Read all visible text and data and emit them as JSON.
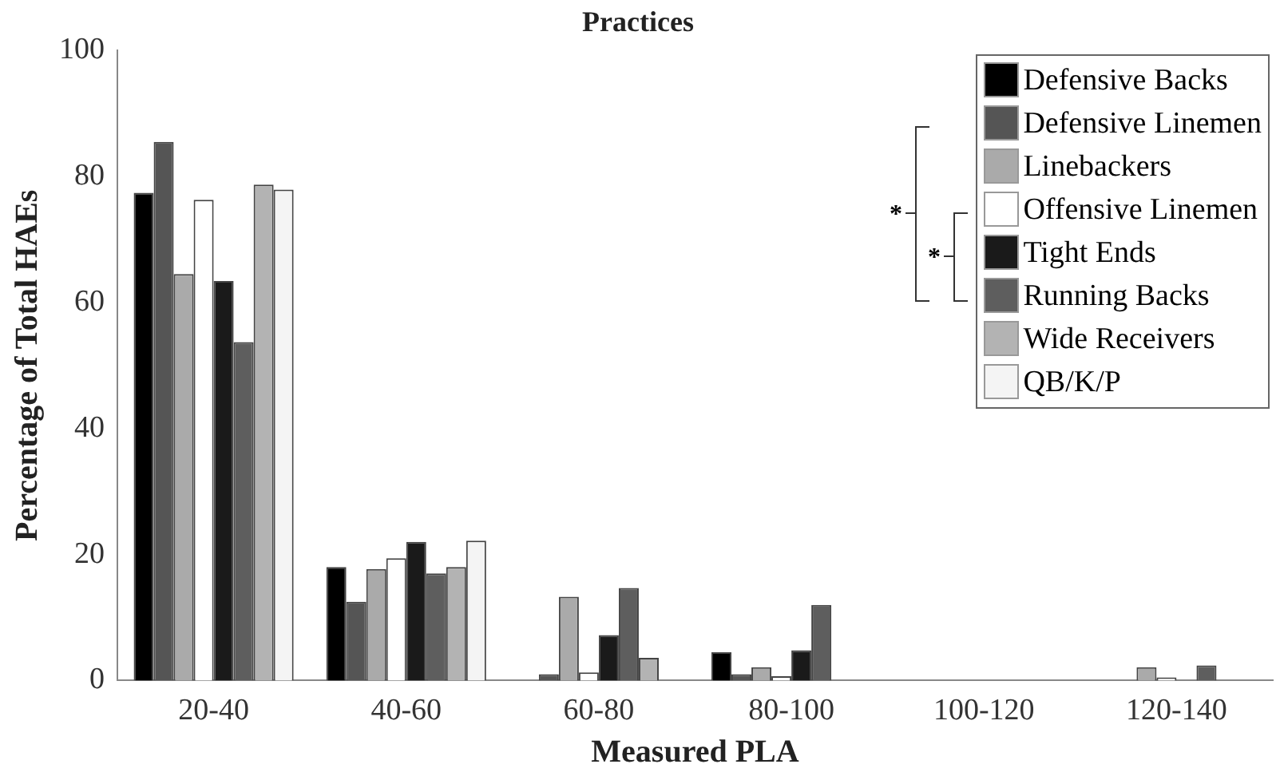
{
  "chart_data": {
    "type": "bar",
    "title": "Practices",
    "xlabel": "Measured PLA",
    "ylabel": "Percentage of Total HAEs",
    "categories": [
      "20-40",
      "40-60",
      "60-80",
      "80-100",
      "100-120",
      "120-140"
    ],
    "series": [
      {
        "name": "Defensive Backs",
        "color": "#000000",
        "values": [
          77.4,
          18.0,
          0,
          4.5,
          0,
          0
        ]
      },
      {
        "name": "Defensive Linemen",
        "color": "#555555",
        "values": [
          85.5,
          12.5,
          1.0,
          1.0,
          0,
          0
        ]
      },
      {
        "name": "Linebackers",
        "color": "#aaaaaa",
        "values": [
          64.5,
          17.7,
          13.3,
          2.1,
          0,
          2.1
        ]
      },
      {
        "name": "Offensive Linemen",
        "color": "#ffffff",
        "values": [
          76.3,
          19.4,
          1.3,
          0.7,
          0,
          0.5
        ]
      },
      {
        "name": "Tight Ends",
        "color": "#1a1a1a",
        "values": [
          63.4,
          22.0,
          7.2,
          4.8,
          0,
          0
        ]
      },
      {
        "name": "Running Backs",
        "color": "#5e5e5e",
        "values": [
          53.7,
          17.0,
          14.7,
          12.0,
          0,
          2.4
        ]
      },
      {
        "name": "Wide Receivers",
        "color": "#b3b3b3",
        "values": [
          78.7,
          18.0,
          3.6,
          0,
          0,
          0
        ]
      },
      {
        "name": "QB/K/P",
        "color": "#f4f4f4",
        "values": [
          77.9,
          22.2,
          0,
          0,
          0,
          0
        ]
      }
    ],
    "ylim": [
      0,
      100
    ],
    "yticks": [
      0,
      20,
      40,
      60,
      80,
      100
    ],
    "grid": false,
    "legend": "top right",
    "annotations": [
      "*",
      "*"
    ]
  }
}
